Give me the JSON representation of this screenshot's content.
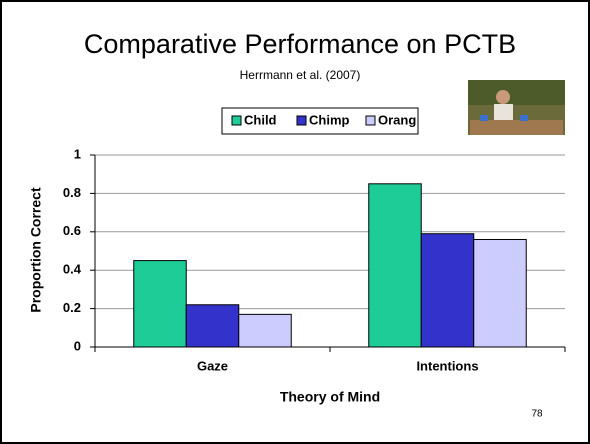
{
  "chart_data": {
    "type": "bar",
    "title": "Comparative Performance on PCTB",
    "subtitle": "Herrmann et al. (2007)",
    "xlabel": "Theory of Mind",
    "ylabel": "Proportion Correct",
    "page_number": "78",
    "categories": [
      "Gaze",
      "Intentions"
    ],
    "series": [
      {
        "name": "Child",
        "color": "#1ecc98",
        "values": [
          0.45,
          0.85
        ]
      },
      {
        "name": "Chimp",
        "color": "#3333cc",
        "values": [
          0.22,
          0.59
        ]
      },
      {
        "name": "Orang",
        "color": "#ccccff",
        "values": [
          0.17,
          0.56
        ]
      }
    ],
    "ylim": [
      0,
      1
    ],
    "yticks": [
      0,
      0.2,
      0.4,
      0.6,
      0.8,
      1
    ],
    "grid": true,
    "legend": "top"
  }
}
